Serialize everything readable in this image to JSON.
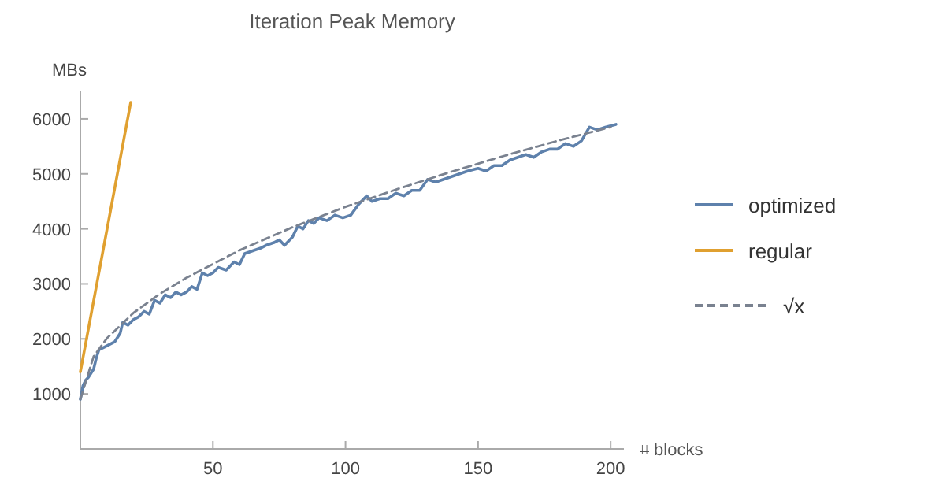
{
  "chart_data": {
    "type": "line",
    "title": "Iteration Peak Memory",
    "ylabel": "MBs",
    "xlabel": "⌗ blocks",
    "xlim": [
      0,
      205
    ],
    "ylim": [
      0,
      6500
    ],
    "xticks": [
      50,
      100,
      150,
      200
    ],
    "yticks": [
      1000,
      2000,
      3000,
      4000,
      5000,
      6000
    ],
    "grid": false,
    "legend": "right",
    "series": [
      {
        "name": "optimized",
        "color": "#5e81ac",
        "line_style": "solid",
        "x": [
          0,
          1,
          2,
          3,
          5,
          6,
          7,
          9,
          11,
          13,
          15,
          16,
          18,
          20,
          22,
          24,
          26,
          28,
          30,
          32,
          34,
          36,
          38,
          40,
          42,
          44,
          46,
          48,
          50,
          52,
          55,
          58,
          60,
          62,
          65,
          68,
          70,
          73,
          75,
          77,
          80,
          82,
          84,
          86,
          88,
          90,
          93,
          96,
          99,
          102,
          105,
          108,
          110,
          113,
          116,
          119,
          122,
          125,
          128,
          131,
          134,
          137,
          140,
          143,
          146,
          150,
          153,
          156,
          159,
          162,
          165,
          168,
          171,
          174,
          177,
          180,
          183,
          186,
          189,
          192,
          195,
          198,
          202
        ],
        "values": [
          900,
          1150,
          1250,
          1300,
          1450,
          1650,
          1800,
          1850,
          1900,
          1950,
          2100,
          2300,
          2250,
          2350,
          2400,
          2500,
          2450,
          2700,
          2650,
          2800,
          2750,
          2850,
          2800,
          2850,
          2950,
          2900,
          3200,
          3150,
          3200,
          3300,
          3250,
          3400,
          3350,
          3550,
          3600,
          3650,
          3700,
          3750,
          3800,
          3700,
          3850,
          4050,
          4000,
          4150,
          4100,
          4200,
          4150,
          4250,
          4200,
          4250,
          4450,
          4600,
          4500,
          4550,
          4550,
          4650,
          4600,
          4700,
          4700,
          4900,
          4850,
          4900,
          4950,
          5000,
          5050,
          5100,
          5050,
          5150,
          5150,
          5250,
          5300,
          5350,
          5300,
          5400,
          5450,
          5450,
          5550,
          5500,
          5600,
          5850,
          5800,
          5850,
          5900
        ]
      },
      {
        "name": "regular",
        "color": "#e0a030",
        "line_style": "solid",
        "x": [
          0,
          19
        ],
        "values": [
          1400,
          6300
        ]
      },
      {
        "name": "√x",
        "color": "#7a8290",
        "line_style": "dashed",
        "x": [
          0,
          5,
          10,
          20,
          30,
          40,
          60,
          80,
          100,
          120,
          140,
          160,
          180,
          200
        ],
        "values": [
          900,
          1680,
          2010,
          2470,
          2820,
          3110,
          3610,
          4030,
          4400,
          4730,
          5040,
          5330,
          5600,
          5850
        ]
      }
    ]
  }
}
